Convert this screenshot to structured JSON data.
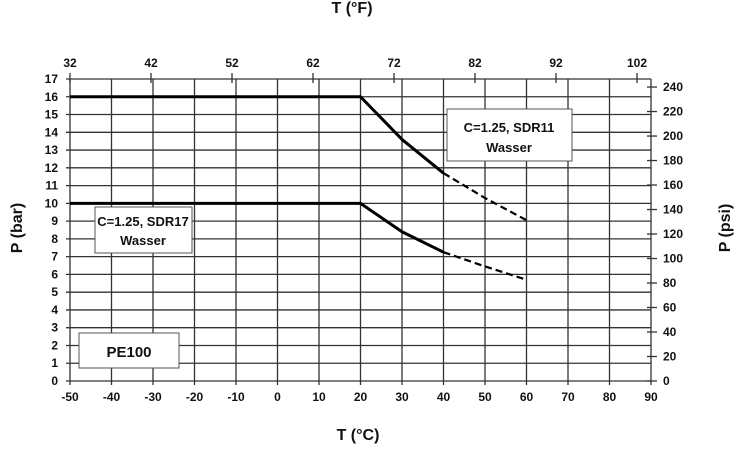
{
  "chart_data": {
    "type": "line",
    "title_top": "T (°F)",
    "xlabel": "T (°C)",
    "ylabel": "P (bar)",
    "ylabel_right": "P (psi)",
    "xlim": [
      -50,
      90
    ],
    "ylim": [
      0,
      17
    ],
    "x_ticks": [
      -50,
      -40,
      -30,
      -20,
      -10,
      0,
      10,
      20,
      30,
      40,
      50,
      60,
      70,
      80,
      90
    ],
    "y_ticks": [
      0,
      1,
      2,
      3,
      4,
      5,
      6,
      7,
      8,
      9,
      10,
      11,
      12,
      13,
      14,
      15,
      16,
      17
    ],
    "top_ticks": [
      32,
      42,
      52,
      62,
      72,
      82,
      92,
      102
    ],
    "right_ticks": [
      0,
      20,
      40,
      60,
      80,
      100,
      120,
      140,
      160,
      180,
      200,
      220,
      240
    ],
    "grid": true,
    "series": [
      {
        "name": "C=1.25, SDR11",
        "name_line2": "Wasser",
        "solid": {
          "x": [
            -50,
            20,
            30,
            40
          ],
          "y": [
            16,
            16,
            13.6,
            11.7
          ]
        },
        "dashed": {
          "x": [
            40,
            50,
            60
          ],
          "y": [
            11.7,
            10.3,
            9.05
          ]
        }
      },
      {
        "name": "C=1.25, SDR17",
        "name_line2": "Wasser",
        "solid": {
          "x": [
            -50,
            20,
            30,
            40
          ],
          "y": [
            10,
            10,
            8.4,
            7.25
          ]
        },
        "dashed": {
          "x": [
            40,
            50,
            60
          ],
          "y": [
            7.25,
            6.45,
            5.7
          ]
        }
      }
    ],
    "annotation": "PE100"
  }
}
